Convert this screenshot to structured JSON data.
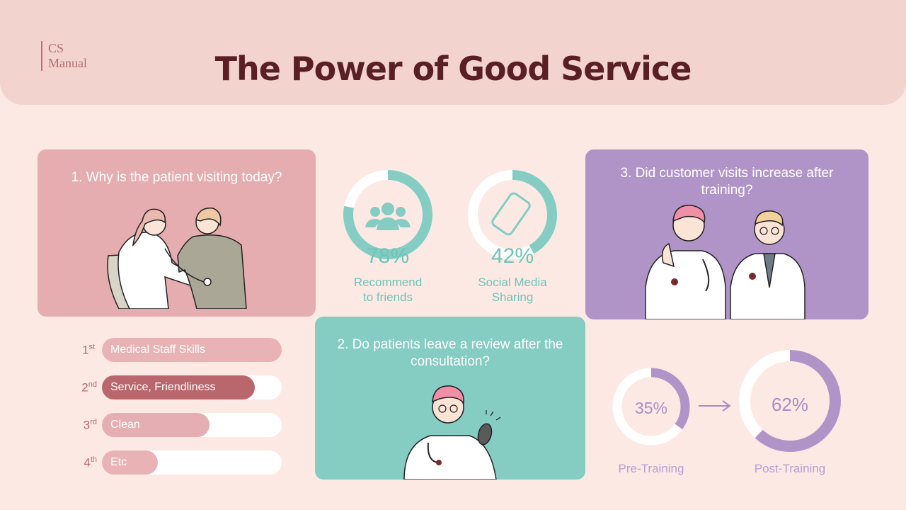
{
  "brand": {
    "line1": "CS",
    "line2": "Manual"
  },
  "title": "The Power of Good Service",
  "q1": {
    "text": "1. Why is the patient visiting today?"
  },
  "q2": {
    "text": "2. Do patients leave a review after the consultation?"
  },
  "q3": {
    "text": "3. Did customer visits increase after training?"
  },
  "stats": [
    {
      "value": 78,
      "pct": "78%",
      "label1": "Recommend",
      "label2": "to friends",
      "icon": "people-group-icon"
    },
    {
      "value": 42,
      "pct": "42%",
      "label1": "Social Media",
      "label2": "Sharing",
      "icon": "smartphone-icon"
    }
  ],
  "ranking": [
    {
      "num": "1",
      "suffix": "st",
      "label": "Medical Staff Skills",
      "value": 1.0,
      "color": "#e9b3b6"
    },
    {
      "num": "2",
      "suffix": "nd",
      "label": "Service, Friendliness",
      "value": 0.85,
      "color": "#b9676c"
    },
    {
      "num": "3",
      "suffix": "rd",
      "label": "Clean",
      "value": 0.6,
      "color": "#e5aeb2"
    },
    {
      "num": "4",
      "suffix": "th",
      "label": "Etc",
      "value": 0.31,
      "color": "#e9b3b6"
    }
  ],
  "training": {
    "pre": {
      "value": 35,
      "pct": "35%",
      "label": "Pre-Training"
    },
    "post": {
      "value": 62,
      "pct": "62%",
      "label": "Post-Training"
    }
  },
  "colors": {
    "teal": "#85ccc3",
    "purple": "#b094c8",
    "rose": "#e6adb1",
    "title": "#5a1f24"
  }
}
